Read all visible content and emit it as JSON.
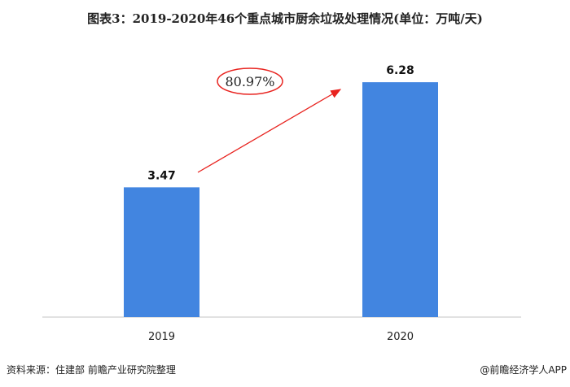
{
  "title": "图表3：2019-2020年46个重点城市厨余垃圾处理情况(单位：万吨/天)",
  "source": "资料来源：住建部 前瞻产业研究院整理",
  "credit": "@前瞻经济学人APP",
  "watermark": "前瞻产业研究院",
  "annotation": "80.97%",
  "colors": {
    "bar": "#4285E0",
    "arrow": "#E8231F",
    "axis": "#D9D9D9"
  },
  "chart_data": {
    "type": "bar",
    "categories": [
      "2019",
      "2020"
    ],
    "values": [
      3.47,
      6.28
    ],
    "data_labels": [
      "3.47",
      "6.28"
    ],
    "title": "图表3：2019-2020年46个重点城市厨余垃圾处理情况(单位：万吨/天)",
    "xlabel": "",
    "ylabel": "",
    "ylim": [
      0,
      6.3
    ],
    "grid": false,
    "growth_annotation": "80.97%"
  }
}
